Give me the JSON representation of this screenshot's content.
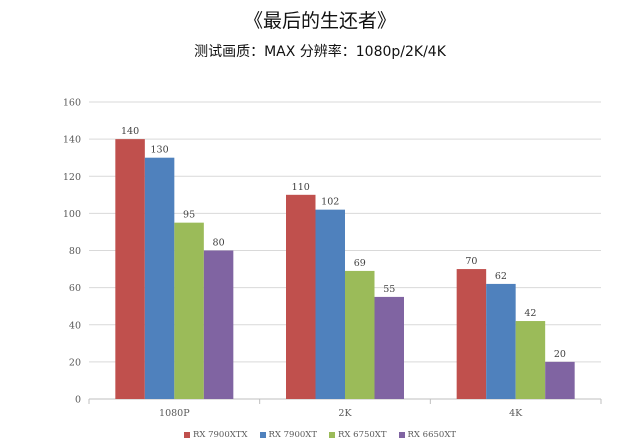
{
  "chart_data": {
    "type": "bar",
    "title": "《最后的生还者》",
    "subtitle": "测试画质：MAX  分辨率：1080p/2K/4K",
    "categories": [
      "1080P",
      "2K",
      "4K"
    ],
    "series": [
      {
        "name": "RX 7900XTX",
        "color": "#c0504d",
        "values": [
          140,
          110,
          70
        ]
      },
      {
        "name": "RX 7900XT",
        "color": "#4f81bd",
        "values": [
          130,
          102,
          62
        ]
      },
      {
        "name": "RX 6750XT",
        "color": "#9bbb59",
        "values": [
          95,
          69,
          42
        ]
      },
      {
        "name": "RX 6650XT",
        "color": "#8064a2",
        "values": [
          80,
          55,
          20
        ]
      }
    ],
    "ylim": [
      0,
      160
    ],
    "yticks": [
      0,
      20,
      40,
      60,
      80,
      100,
      120,
      140,
      160
    ],
    "grid": true,
    "legend_position": "bottom"
  }
}
